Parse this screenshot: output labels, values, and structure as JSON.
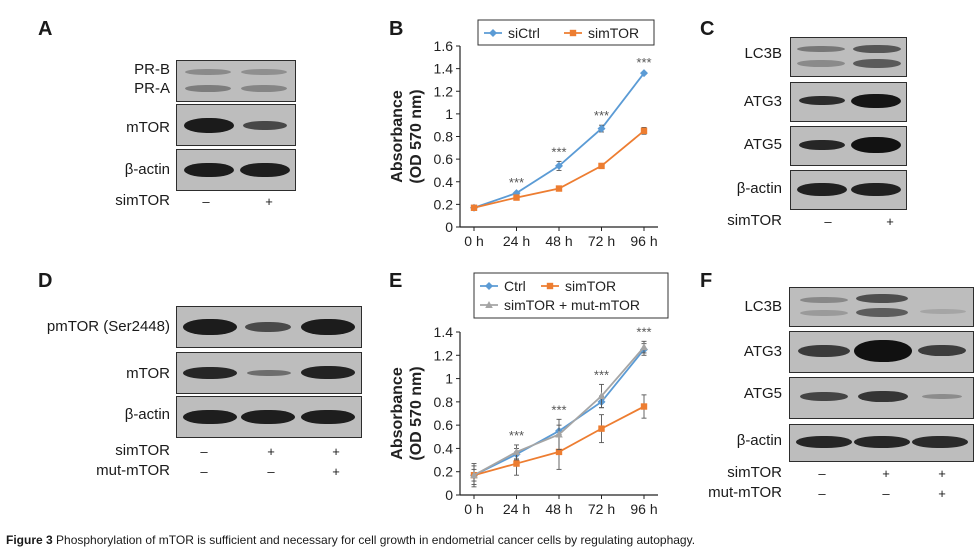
{
  "caption": {
    "label": "Figure 3",
    "text": "Phosphorylation of mTOR is sufficient and necessary for cell growth in endometrial cancer cells by regulating autophagy."
  },
  "panels": {
    "A": {
      "letter": "A",
      "rows": [
        "PR-B",
        "PR-A",
        "mTOR",
        "β-actin"
      ],
      "treatments": [
        {
          "label": "simTOR",
          "signs": [
            "–",
            "+"
          ]
        }
      ]
    },
    "C": {
      "letter": "C",
      "rows": [
        "LC3B",
        "ATG3",
        "ATG5",
        "β-actin"
      ],
      "treatments": [
        {
          "label": "simTOR",
          "signs": [
            "–",
            "+"
          ]
        }
      ]
    },
    "D": {
      "letter": "D",
      "rows": [
        "pmTOR (Ser2448)",
        "mTOR",
        "β-actin"
      ],
      "treatments": [
        {
          "label": "simTOR",
          "signs": [
            "–",
            "+",
            "+"
          ]
        },
        {
          "label": "mut-mTOR",
          "signs": [
            "–",
            "–",
            "+"
          ]
        }
      ]
    },
    "F": {
      "letter": "F",
      "rows": [
        "LC3B",
        "ATG3",
        "ATG5",
        "β-actin"
      ],
      "treatments": [
        {
          "label": "simTOR",
          "signs": [
            "–",
            "+",
            "+"
          ]
        },
        {
          "label": "mut-mTOR",
          "signs": [
            "–",
            "–",
            "+"
          ]
        }
      ]
    }
  },
  "colors": {
    "blue": "#5b9bd5",
    "orange": "#ed7d31",
    "gray": "#a5a5a5",
    "axis": "#222222",
    "sig": "#555555"
  },
  "chart_data": [
    {
      "panel": "B",
      "type": "line",
      "ylabel_line1": "Absorbance",
      "ylabel_line2": "(OD 570 nm)",
      "categories": [
        "0 h",
        "24 h",
        "48 h",
        "72 h",
        "96 h"
      ],
      "ylim": [
        0,
        1.6
      ],
      "yticks": [
        "0",
        "0.2",
        "0.4",
        "0.6",
        "0.8",
        "1",
        "1.2",
        "1.4",
        "1.6"
      ],
      "series": [
        {
          "name": "siCtrl",
          "color": "#5b9bd5",
          "marker": "diamond",
          "values": [
            0.17,
            0.3,
            0.54,
            0.87,
            1.36
          ],
          "errors": [
            0.01,
            0.01,
            0.04,
            0.03,
            0.01
          ]
        },
        {
          "name": "simTOR",
          "color": "#ed7d31",
          "marker": "square",
          "values": [
            0.17,
            0.26,
            0.34,
            0.54,
            0.85
          ],
          "errors": [
            0.01,
            0.01,
            0.01,
            0.01,
            0.03
          ]
        }
      ],
      "significance": [
        "",
        "***",
        "***",
        "***",
        "***"
      ]
    },
    {
      "panel": "E",
      "type": "line",
      "ylabel_line1": "Absorbance",
      "ylabel_line2": "(OD 570 nm)",
      "categories": [
        "0 h",
        "24 h",
        "48 h",
        "72 h",
        "96 h"
      ],
      "ylim": [
        0,
        1.4
      ],
      "yticks": [
        "0",
        "0.2",
        "0.4",
        "0.6",
        "0.8",
        "1",
        "1.2",
        "1.4"
      ],
      "series": [
        {
          "name": "Ctrl",
          "color": "#5b9bd5",
          "marker": "diamond",
          "values": [
            0.17,
            0.35,
            0.55,
            0.8,
            1.25
          ],
          "errors": [
            0.05,
            0.05,
            0.05,
            0.05,
            0.05
          ]
        },
        {
          "name": "simTOR",
          "color": "#ed7d31",
          "marker": "square",
          "values": [
            0.17,
            0.27,
            0.37,
            0.57,
            0.76
          ],
          "errors": [
            0.1,
            0.1,
            0.15,
            0.12,
            0.1
          ]
        },
        {
          "name": "simTOR + mut-mTOR",
          "color": "#a5a5a5",
          "marker": "triangle",
          "values": [
            0.17,
            0.37,
            0.52,
            0.85,
            1.27
          ],
          "errors": [
            0.08,
            0.06,
            0.13,
            0.1,
            0.05
          ]
        }
      ],
      "significance": [
        "",
        "***",
        "***",
        "***",
        "***"
      ]
    }
  ]
}
